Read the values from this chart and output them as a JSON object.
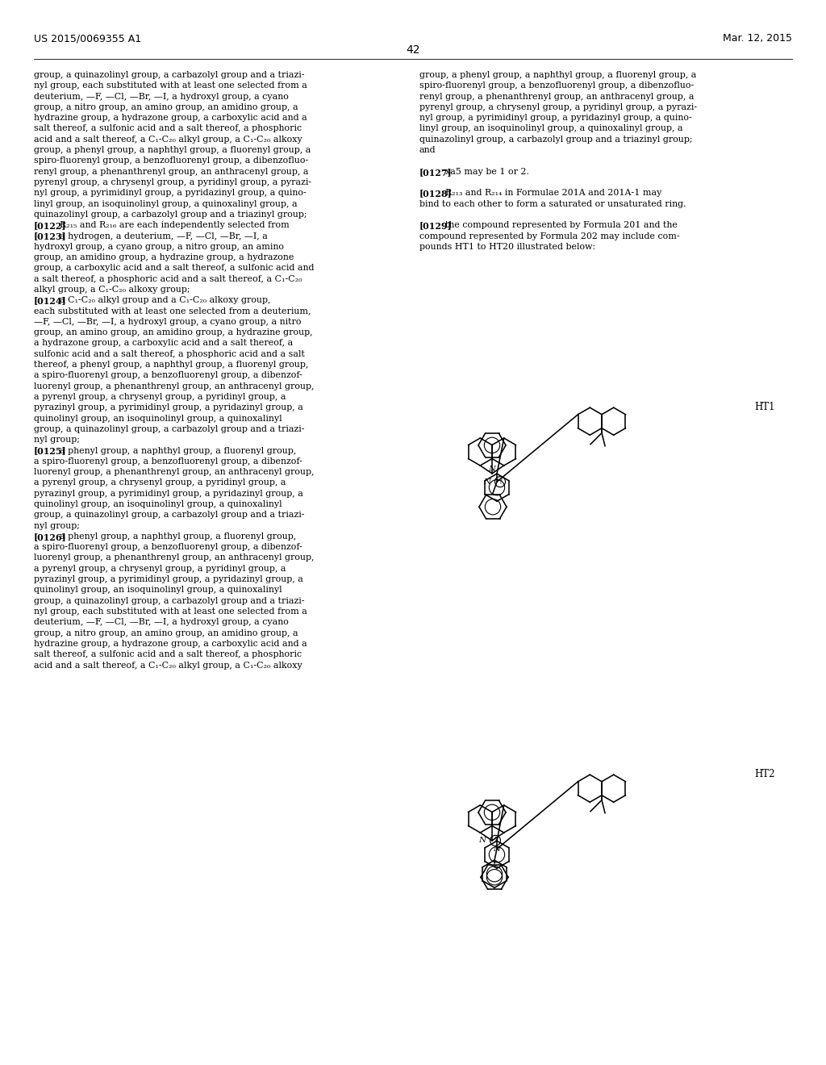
{
  "background_color": "#ffffff",
  "header_left": "US 2015/0069355 A1",
  "header_right": "Mar. 12, 2015",
  "page_number": "42",
  "col1_lines": [
    "group, a quinazolinyl group, a carbazolyl group and a triazi-",
    "nyl group, each substituted with at least one selected from a",
    "deuterium, —F, —Cl, —Br, —I, a hydroxyl group, a cyano",
    "group, a nitro group, an amino group, an amidino group, a",
    "hydrazine group, a hydrazone group, a carboxylic acid and a",
    "salt thereof, a sulfonic acid and a salt thereof, a phosphoric",
    "acid and a salt thereof, a C₁-C₂₀ alkyl group, a C₁-C₂₀ alkoxy",
    "group, a phenyl group, a naphthyl group, a fluorenyl group, a",
    "spiro-fluorenyl group, a benzofluorenyl group, a dibenzofluo-",
    "renyl group, a phenanthrenyl group, an anthracenyl group, a",
    "pyrenyl group, a chrysenyl group, a pyridinyl group, a pyrazi-",
    "nyl group, a pyrimidinyl group, a pyridazinyl group, a quino-",
    "linyl group, an isoquinolinyl group, a quinoxalinyl group, a",
    "quinazolinyl group, a carbazolyl group and a triazinyl group;",
    "[0122]  R₂₁₅ and R₂₁₆ are each independently selected from",
    "[0123]  a hydrogen, a deuterium, —F, —Cl, —Br, —I, a",
    "hydroxyl group, a cyano group, a nitro group, an amino",
    "group, an amidino group, a hydrazine group, a hydrazone",
    "group, a carboxylic acid and a salt thereof, a sulfonic acid and",
    "a salt thereof, a phosphoric acid and a salt thereof, a C₁-C₂₀",
    "alkyl group, a C₁-C₂₀ alkoxy group;",
    "[0124]  a C₁-C₂₀ alkyl group and a C₁-C₂₀ alkoxy group,",
    "each substituted with at least one selected from a deuterium,",
    "—F, —Cl, —Br, —I, a hydroxyl group, a cyano group, a nitro",
    "group, an amino group, an amidino group, a hydrazine group,",
    "a hydrazone group, a carboxylic acid and a salt thereof, a",
    "sulfonic acid and a salt thereof, a phosphoric acid and a salt",
    "thereof, a phenyl group, a naphthyl group, a fluorenyl group,",
    "a spiro-fluorenyl group, a benzofluorenyl group, a dibenzof-",
    "luorenyl group, a phenanthrenyl group, an anthracenyl group,",
    "a pyrenyl group, a chrysenyl group, a pyridinyl group, a",
    "pyrazinyl group, a pyrimidinyl group, a pyridazinyl group, a",
    "quinolinyl group, an isoquinolinyl group, a quinoxalinyl",
    "group, a quinazolinyl group, a carbazolyl group and a triazi-",
    "nyl group;",
    "[0125]  a phenyl group, a naphthyl group, a fluorenyl group,",
    "a spiro-fluorenyl group, a benzofluorenyl group, a dibenzof-",
    "luorenyl group, a phenanthrenyl group, an anthracenyl group,",
    "a pyrenyl group, a chrysenyl group, a pyridinyl group, a",
    "pyrazinyl group, a pyrimidinyl group, a pyridazinyl group, a",
    "quinolinyl group, an isoquinolinyl group, a quinoxalinyl",
    "group, a quinazolinyl group, a carbazolyl group and a triazi-",
    "nyl group;",
    "[0126]  a phenyl group, a naphthyl group, a fluorenyl group,",
    "a spiro-fluorenyl group, a benzofluorenyl group, a dibenzof-",
    "luorenyl group, a phenanthrenyl group, an anthracenyl group,",
    "a pyrenyl group, a chrysenyl group, a pyridinyl group, a",
    "pyrazinyl group, a pyrimidinyl group, a pyridazinyl group, a",
    "quinolinyl group, an isoquinolinyl group, a quinoxalinyl",
    "group, a quinazolinyl group, a carbazolyl group and a triazi-",
    "nyl group, each substituted with at least one selected from a",
    "deuterium, —F, —Cl, —Br, —I, a hydroxyl group, a cyano",
    "group, a nitro group, an amino group, an amidino group, a",
    "hydrazine group, a hydrazone group, a carboxylic acid and a",
    "salt thereof, a sulfonic acid and a salt thereof, a phosphoric",
    "acid and a salt thereof, a C₁-C₂₀ alkyl group, a C₁-C₂₀ alkoxy"
  ],
  "col2_lines": [
    "group, a phenyl group, a naphthyl group, a fluorenyl group, a",
    "spiro-fluorenyl group, a benzofluorenyl group, a dibenzofluo-",
    "renyl group, a phenanthrenyl group, an anthracenyl group, a",
    "pyrenyl group, a chrysenyl group, a pyridinyl group, a pyrazi-",
    "nyl group, a pyrimidinyl group, a pyridazinyl group, a quino-",
    "linyl group, an isoquinolinyl group, a quinoxalinyl group, a",
    "quinazolinyl group, a carbazolyl group and a triazinyl group;",
    "and",
    "",
    "[0127]  xa5 may be 1 or 2.",
    "",
    "[0128]  R₂₁₃ and R₂₁₄ in Formulae 201A and 201A-1 may",
    "bind to each other to form a saturated or unsaturated ring.",
    "",
    "[0129]  the compound represented by Formula 201 and the",
    "compound represented by Formula 202 may include com-",
    "pounds HT1 to HT20 illustrated below:"
  ],
  "ht1_label": "HT1",
  "ht2_label": "HT2"
}
